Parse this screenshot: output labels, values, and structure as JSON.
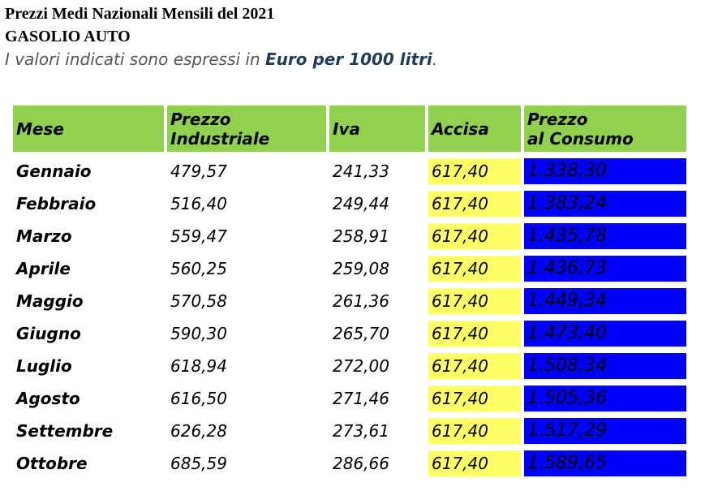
{
  "header": {
    "title": "Prezzi Medi Nazionali Mensili del 2021",
    "subtitle": "GASOLIO AUTO",
    "note_prefix": "I valori indicati sono espressi in ",
    "note_bold": "Euro per 1000 litri",
    "note_suffix": "."
  },
  "table": {
    "columns": [
      {
        "key": "mese",
        "label_line1": "Mese",
        "label_line2": ""
      },
      {
        "key": "industriale",
        "label_line1": "Prezzo",
        "label_line2": "Industriale"
      },
      {
        "key": "iva",
        "label_line1": "Iva",
        "label_line2": ""
      },
      {
        "key": "accisa",
        "label_line1": "Accisa",
        "label_line2": ""
      },
      {
        "key": "consumo",
        "label_line1": "Prezzo",
        "label_line2": "al Consumo"
      }
    ],
    "rows": [
      {
        "mese": "Gennaio",
        "industriale": "479,57",
        "iva": "241,33",
        "accisa": "617,40",
        "consumo": "1.338,30"
      },
      {
        "mese": "Febbraio",
        "industriale": "516,40",
        "iva": "249,44",
        "accisa": "617,40",
        "consumo": "1.383,24"
      },
      {
        "mese": "Marzo",
        "industriale": "559,47",
        "iva": "258,91",
        "accisa": "617,40",
        "consumo": "1.435,78"
      },
      {
        "mese": "Aprile",
        "industriale": "560,25",
        "iva": "259,08",
        "accisa": "617,40",
        "consumo": "1.436,73"
      },
      {
        "mese": "Maggio",
        "industriale": "570,58",
        "iva": "261,36",
        "accisa": "617,40",
        "consumo": "1.449,34"
      },
      {
        "mese": "Giugno",
        "industriale": "590,30",
        "iva": "265,70",
        "accisa": "617,40",
        "consumo": "1.473,40"
      },
      {
        "mese": "Luglio",
        "industriale": "618,94",
        "iva": "272,00",
        "accisa": "617,40",
        "consumo": "1.508,34"
      },
      {
        "mese": "Agosto",
        "industriale": "616,50",
        "iva": "271,46",
        "accisa": "617,40",
        "consumo": "1.505,36"
      },
      {
        "mese": "Settembre",
        "industriale": "626,28",
        "iva": "273,61",
        "accisa": "617,40",
        "consumo": "1.517,29"
      },
      {
        "mese": "Ottobre",
        "industriale": "685,59",
        "iva": "286,66",
        "accisa": "617,40",
        "consumo": "1.589,65"
      }
    ]
  },
  "colors": {
    "header_bg": "#92d050",
    "accisa_bg": "#ffff66",
    "consumo_bg": "#0000ff",
    "consumo_text": "#ffffff"
  }
}
